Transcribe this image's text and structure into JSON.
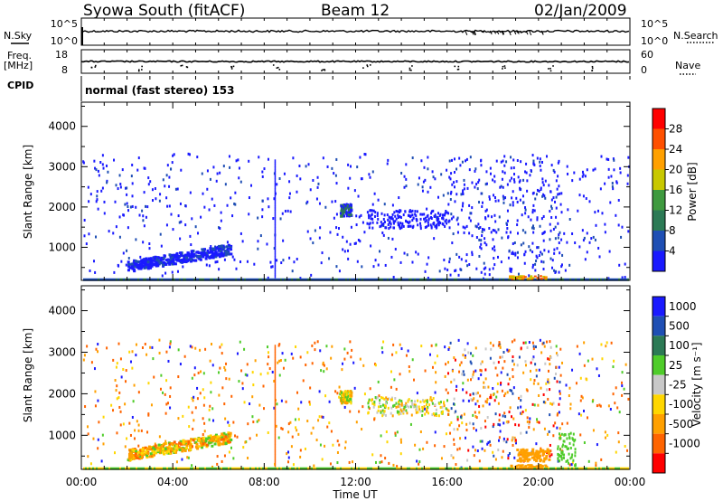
{
  "header": {
    "station": "Syowa South (fitACF)",
    "beam": "Beam 12",
    "date": "02/Jan/2009"
  },
  "noise_panel": {
    "left_label": "N.Sky",
    "right_label": "N.Search",
    "tick_top": "10^5",
    "tick_bottom": "10^0"
  },
  "freq_panel": {
    "left_label_1": "Freq.",
    "left_label_2": "[MHz]",
    "right_label": "Nave",
    "freq_ticks": [
      "18",
      "8"
    ],
    "nave_ticks": [
      "60",
      "0"
    ]
  },
  "cpid_panel": {
    "label": "CPID",
    "text": "normal (fast stereo) 153"
  },
  "colors": {
    "power_scale": [
      "#1a1aff",
      "#1f4fb4",
      "#2c7a55",
      "#3f9a3f",
      "#c8c800",
      "#ffa000",
      "#ff5000",
      "#ff0000"
    ],
    "velocity_scale": [
      "#1a1aff",
      "#1f4fb4",
      "#2c7a55",
      "#4fcc2a",
      "#c8c8c8",
      "#ffd700",
      "#ffa000",
      "#ff6400",
      "#ff0000"
    ]
  },
  "chart_data": [
    {
      "type": "heatmap",
      "name": "power",
      "ylabel": "Slant Range [km]",
      "ylim": [
        180,
        4600
      ],
      "yticks": [
        "1000",
        "2000",
        "3000",
        "4000"
      ],
      "xlabel": "Time UT",
      "xticks": [
        "00:00",
        "04:00",
        "08:00",
        "12:00",
        "16:00",
        "20:00",
        "00:00"
      ],
      "colorbar": {
        "label": "Power [dB]",
        "ticks": [
          "4",
          "8",
          "12",
          "16",
          "20",
          "24",
          "28"
        ]
      },
      "features": [
        {
          "time_range": [
            "02:00",
            "06:30"
          ],
          "range_km": [
            500,
            950
          ],
          "level": "low"
        },
        {
          "time_range": [
            "11:30",
            "12:00"
          ],
          "range_km": [
            1800,
            2100
          ],
          "level": "low"
        },
        {
          "time_range": [
            "19:00",
            "20:00"
          ],
          "range_km": [
            180,
            300
          ],
          "level": "high"
        }
      ]
    },
    {
      "type": "heatmap",
      "name": "velocity",
      "ylabel": "Slant Range [km]",
      "ylim": [
        180,
        4600
      ],
      "yticks": [
        "1000",
        "2000",
        "3000",
        "4000"
      ],
      "xlabel": "Time UT",
      "xticks": [
        "00:00",
        "04:00",
        "08:00",
        "12:00",
        "16:00",
        "20:00",
        "00:00"
      ],
      "colorbar": {
        "label": "Velocity [m s⁻¹]",
        "ticks": [
          "1000",
          "500",
          "100",
          "25",
          "-25",
          "-100",
          "-500",
          "-1000"
        ]
      },
      "features": [
        {
          "time_range": [
            "02:00",
            "06:30"
          ],
          "range_km": [
            500,
            1000
          ],
          "value": "negative"
        },
        {
          "time_range": [
            "18:00",
            "20:30"
          ],
          "range_km": [
            200,
            700
          ],
          "value": "negative"
        }
      ]
    }
  ]
}
